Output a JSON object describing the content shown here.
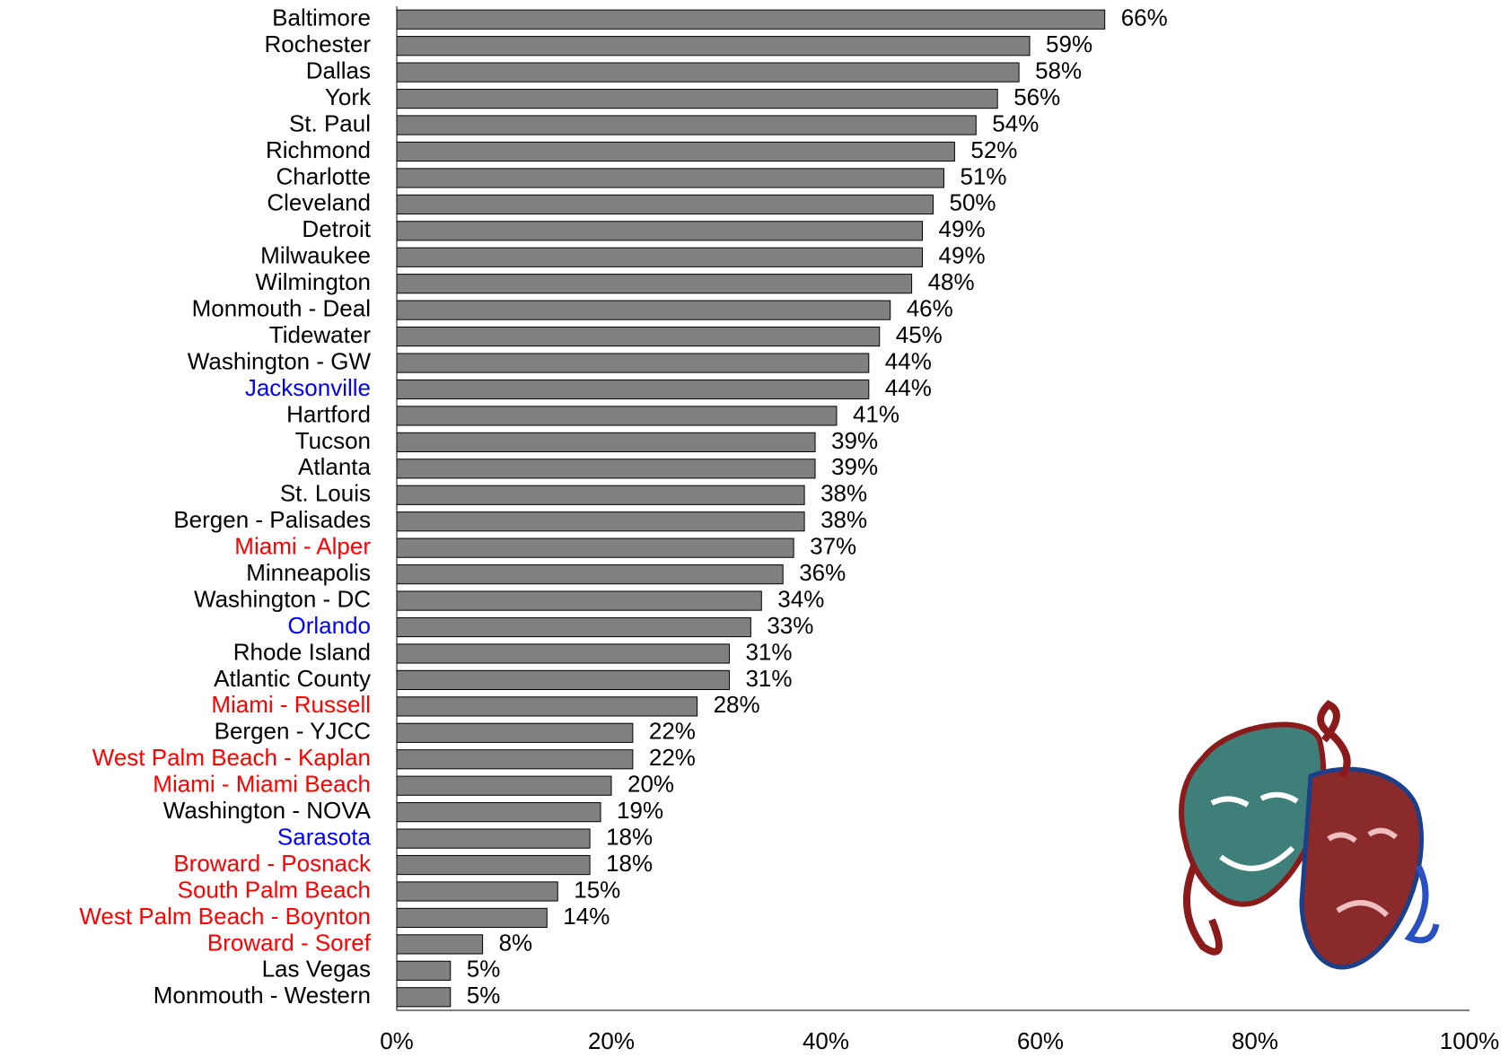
{
  "chart_data": {
    "type": "bar",
    "orientation": "horizontal",
    "categories": [
      "Baltimore",
      "Rochester",
      "Dallas",
      "York",
      "St. Paul",
      "Richmond",
      "Charlotte",
      "Cleveland",
      "Detroit",
      "Milwaukee",
      "Wilmington",
      "Monmouth - Deal",
      "Tidewater",
      "Washington - GW",
      "Jacksonville",
      "Hartford",
      "Tucson",
      "Atlanta",
      "St. Louis",
      "Bergen - Palisades",
      "Miami - Alper",
      "Minneapolis",
      "Washington - DC",
      "Orlando",
      "Rhode Island",
      "Atlantic County",
      "Miami - Russell",
      "Bergen - YJCC",
      "West Palm Beach - Kaplan",
      "Miami - Miami Beach",
      "Washington - NOVA",
      "Sarasota",
      "Broward - Posnack",
      "South Palm Beach",
      "West Palm Beach - Boynton",
      "Broward - Soref",
      "Las Vegas",
      "Monmouth - Western"
    ],
    "label_colors": [
      "#000000",
      "#000000",
      "#000000",
      "#000000",
      "#000000",
      "#000000",
      "#000000",
      "#000000",
      "#000000",
      "#000000",
      "#000000",
      "#000000",
      "#000000",
      "#000000",
      "#0000ff",
      "#000000",
      "#000000",
      "#000000",
      "#000000",
      "#000000",
      "#ff0000",
      "#000000",
      "#000000",
      "#0000ff",
      "#000000",
      "#000000",
      "#ff0000",
      "#000000",
      "#ff0000",
      "#ff0000",
      "#000000",
      "#0000ff",
      "#ff0000",
      "#ff0000",
      "#ff0000",
      "#ff0000",
      "#000000",
      "#000000"
    ],
    "values": [
      66,
      59,
      58,
      56,
      54,
      52,
      51,
      50,
      49,
      49,
      48,
      46,
      45,
      44,
      44,
      41,
      39,
      39,
      38,
      38,
      37,
      36,
      34,
      33,
      31,
      31,
      28,
      22,
      22,
      20,
      19,
      18,
      18,
      15,
      14,
      8,
      5,
      5
    ],
    "value_labels": [
      "66%",
      "59%",
      "58%",
      "56%",
      "54%",
      "52%",
      "51%",
      "50%",
      "49%",
      "49%",
      "48%",
      "46%",
      "45%",
      "44%",
      "44%",
      "41%",
      "39%",
      "39%",
      "38%",
      "38%",
      "37%",
      "36%",
      "34%",
      "33%",
      "31%",
      "31%",
      "28%",
      "22%",
      "22%",
      "20%",
      "19%",
      "18%",
      "18%",
      "15%",
      "14%",
      "8%",
      "5%",
      "5%"
    ],
    "color": "#808080",
    "xlim": [
      0,
      100
    ],
    "xticks": [
      {
        "value": 0,
        "label": "0%"
      },
      {
        "value": 20,
        "label": "20%"
      },
      {
        "value": 40,
        "label": "40%"
      },
      {
        "value": 60,
        "label": "60%"
      },
      {
        "value": 80,
        "label": "80%"
      },
      {
        "value": 100,
        "label": "100%"
      }
    ],
    "grid": false
  }
}
